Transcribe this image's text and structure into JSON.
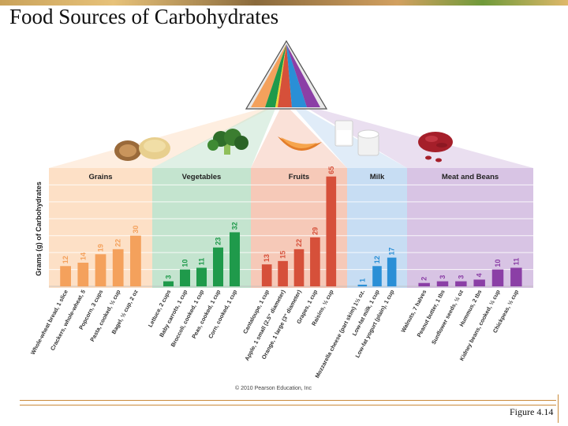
{
  "title": "Food Sources of Carbohydrates",
  "figure_label": "Figure 4.14",
  "copyright": "© 2010 Pearson Education, Inc",
  "chart_data": {
    "type": "bar",
    "ylabel": "Grams (g) of Carbohydrates",
    "ylim": [
      0,
      70
    ],
    "grid": true,
    "groups": [
      {
        "name": "Grains",
        "color": "#f4a15c",
        "band": "#fde0c6",
        "items": [
          {
            "label": "Whole-wheat bread, 1 slice",
            "value": 12
          },
          {
            "label": "Crackers, whole-wheat, 5",
            "value": 14
          },
          {
            "label": "Popcorn, 3 cups",
            "value": 19
          },
          {
            "label": "Pasta, cooked, ½ cup",
            "value": 22
          },
          {
            "label": "Bagel, ½ cup, 2 oz",
            "value": 30
          }
        ]
      },
      {
        "name": "Vegetables",
        "color": "#1f9a4b",
        "band": "#c4e4cf",
        "items": [
          {
            "label": "Lettuce, 2 cups",
            "value": 3
          },
          {
            "label": "Baby carrots, 1 cup",
            "value": 10
          },
          {
            "label": "Broccoli, cooked, 1 cup",
            "value": 11
          },
          {
            "label": "Peas, cooked, 1 cup",
            "value": 23
          },
          {
            "label": "Corn, cooked, 1 cup",
            "value": 32
          }
        ]
      },
      {
        "name": "Fruits",
        "color": "#d6503a",
        "band": "#f6c9b8",
        "items": [
          {
            "label": "Cantaloupe, 1 cup",
            "value": 13
          },
          {
            "label": "Apple, 1 small (2.5\" diameter)",
            "value": 15
          },
          {
            "label": "Orange, 1 large (3\" diameter)",
            "value": 22
          },
          {
            "label": "Grapes, 1 cup",
            "value": 29
          },
          {
            "label": "Raisins, ½ cup",
            "value": 65
          }
        ]
      },
      {
        "name": "Milk",
        "color": "#2a8fd6",
        "band": "#c7ddf3",
        "items": [
          {
            "label": "Mozzarella cheese (part skim) 1½ oz.",
            "value": 1
          },
          {
            "label": "Low-fat milk, 1 cup",
            "value": 12
          },
          {
            "label": "Low-fat yogurt (plain), 1 cup",
            "value": 17
          }
        ]
      },
      {
        "name": "Meat and Beans",
        "color": "#8b3fa6",
        "band": "#d8c4e4",
        "items": [
          {
            "label": "Walnuts, 7 halves",
            "value": 2
          },
          {
            "label": "Peanut butter, 1 tbs",
            "value": 3
          },
          {
            "label": "Sunflower seeds, ½ oz",
            "value": 3
          },
          {
            "label": "Hummus, 2 tbs",
            "value": 4
          },
          {
            "label": "Kidney beans, cooked, ½ cup",
            "value": 10
          },
          {
            "label": "Chickpeas, ½ cup",
            "value": 11
          }
        ]
      }
    ]
  }
}
